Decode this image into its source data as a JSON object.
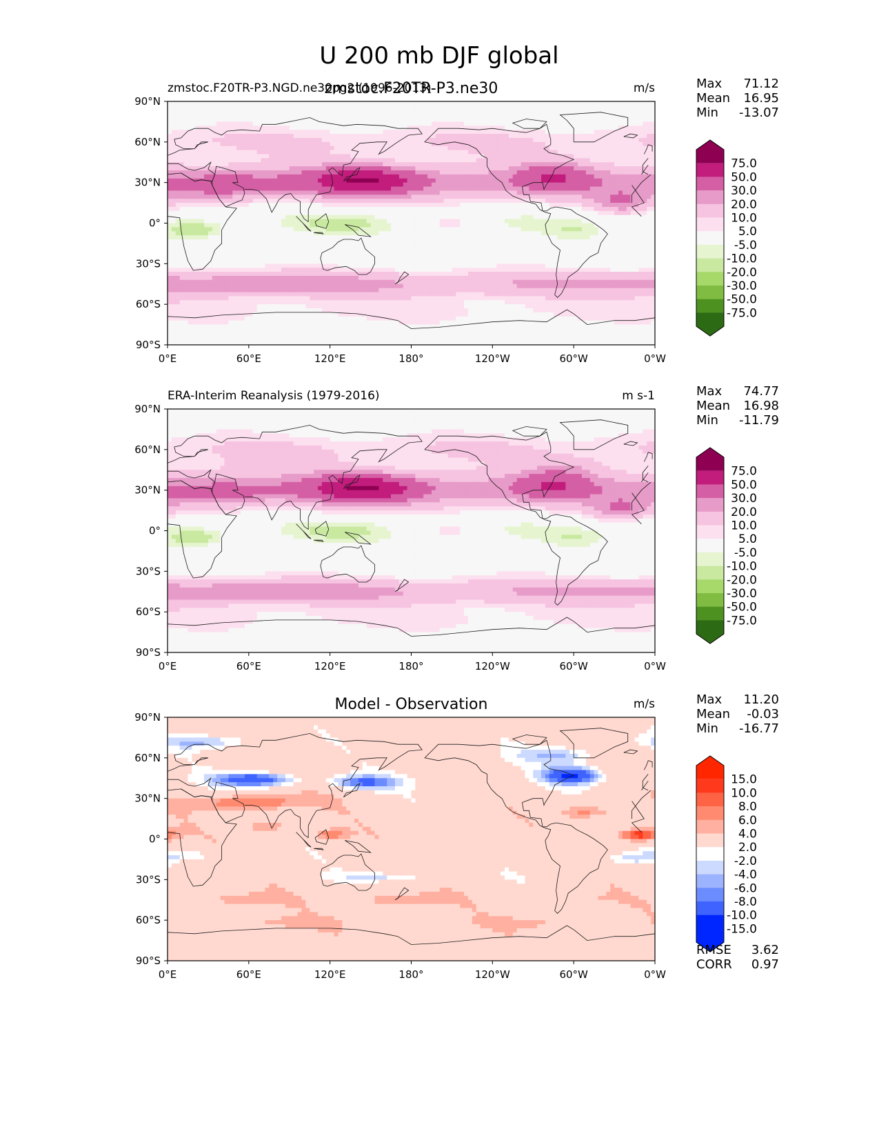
{
  "figure_title": "U 200 mb DJF global",
  "lat_ticks": [
    "90°N",
    "60°N",
    "30°N",
    "0°",
    "30°S",
    "60°S",
    "90°S"
  ],
  "lon_ticks": [
    "0°E",
    "60°E",
    "120°E",
    "180°",
    "120°W",
    "60°W",
    "0°W"
  ],
  "colors": {
    "main_under": "#2d6a14",
    "main_over": "#8e0152",
    "main_fills": [
      "#2d6a14",
      "#4d9221",
      "#7fbc41",
      "#a6d86a",
      "#c9e8a0",
      "#e6f5d0",
      "#f7f7f7",
      "#fde0ef",
      "#f6c3e0",
      "#e79bc8",
      "#d55fa5",
      "#c21c7d",
      "#8e0152"
    ],
    "diff_fills": [
      "#0026ff",
      "#3e63ff",
      "#6b8cff",
      "#9cb3ff",
      "#cddaff",
      "#ffffff",
      "#ffd9d0",
      "#ffb0a0",
      "#ff8a70",
      "#ff6346",
      "#ff3a1c",
      "#ff2600"
    ]
  },
  "chart_data": [
    {
      "type": "heatmap",
      "id": "model",
      "title": "zmstoc.F20TR-P3.ne30",
      "subtitle_left": "zmstoc.F20TR-P3.NGD.ne30pg2 (1996-2013)",
      "units": "m/s",
      "stats": [
        {
          "label": "Max",
          "value": "71.12"
        },
        {
          "label": "Mean",
          "value": "16.95"
        },
        {
          "label": "Min",
          "value": "-13.07"
        }
      ],
      "colorbar_levels": [
        "75.0",
        "50.0",
        "30.0",
        "20.0",
        "10.0",
        "5.0",
        "-5.0",
        "-10.0",
        "-20.0",
        "-30.0",
        "-50.0",
        "-75.0"
      ],
      "xlim": [
        0,
        360
      ],
      "ylim": [
        -90,
        90
      ],
      "field": "model"
    },
    {
      "type": "heatmap",
      "id": "obs",
      "title": "",
      "subtitle_left": "ERA-Interim Reanalysis (1979-2016)",
      "units": "m s-1",
      "stats": [
        {
          "label": "Max",
          "value": "74.77"
        },
        {
          "label": "Mean",
          "value": "16.98"
        },
        {
          "label": "Min",
          "value": "-11.79"
        }
      ],
      "colorbar_levels": [
        "75.0",
        "50.0",
        "30.0",
        "20.0",
        "10.0",
        "5.0",
        "-5.0",
        "-10.0",
        "-20.0",
        "-30.0",
        "-50.0",
        "-75.0"
      ],
      "xlim": [
        0,
        360
      ],
      "ylim": [
        -90,
        90
      ],
      "field": "obs"
    },
    {
      "type": "heatmap",
      "id": "diff",
      "title": "Model - Observation",
      "subtitle_left": "",
      "units": "m/s",
      "stats": [
        {
          "label": "Max",
          "value": "11.20"
        },
        {
          "label": "Mean",
          "value": "-0.03"
        },
        {
          "label": "Min",
          "value": "-16.77"
        }
      ],
      "metrics": [
        {
          "label": "RMSE",
          "value": "3.62"
        },
        {
          "label": "CORR",
          "value": "0.97"
        }
      ],
      "colorbar_levels": [
        "15.0",
        "10.0",
        "8.0",
        "6.0",
        "4.0",
        "2.0",
        "-2.0",
        "-4.0",
        "-6.0",
        "-8.0",
        "-10.0",
        "-15.0"
      ],
      "xlim": [
        0,
        360
      ],
      "ylim": [
        -90,
        90
      ],
      "field": "diff"
    }
  ]
}
